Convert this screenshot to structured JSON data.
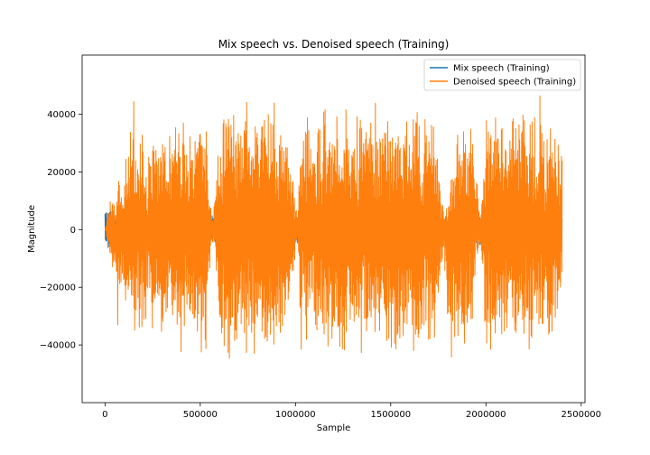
{
  "chart_data": {
    "type": "line",
    "title": "Mix speech vs. Denoised speech (Training)",
    "xlabel": "Sample",
    "ylabel": "Magnitude",
    "xlim": [
      -120000,
      2520000
    ],
    "ylim": [
      -60000,
      60500
    ],
    "xticks": [
      0,
      500000,
      1000000,
      1500000,
      2000000,
      2500000
    ],
    "xtick_labels": [
      "0",
      "500000",
      "1000000",
      "1500000",
      "2000000",
      "2500000"
    ],
    "yticks": [
      -40000,
      -20000,
      0,
      20000,
      40000
    ],
    "ytick_labels": [
      "−40000",
      "−20000",
      "0",
      "20000",
      "40000"
    ],
    "grid": false,
    "legend_position": "top-right",
    "series": [
      {
        "name": "Mix speech (Training)",
        "color": "#1f77b4",
        "envelope": {
          "x": [
            0,
            30000,
            60000,
            100000,
            150000,
            200000,
            250000,
            300000,
            400000,
            480000,
            520000,
            560000,
            600000,
            700000,
            800000,
            900000,
            1000000,
            1020000,
            1100000,
            1200000,
            1300000,
            1400000,
            1500000,
            1600000,
            1700000,
            1750000,
            1800000,
            1900000,
            1950000,
            2000000,
            2100000,
            2200000,
            2300000,
            2350000,
            2400000
          ],
          "y": [
            6500,
            7000,
            6000,
            8000,
            7500,
            6000,
            5500,
            5000,
            4500,
            3000,
            4000,
            5000,
            5000,
            4500,
            5000,
            4500,
            3500,
            6000,
            5000,
            4500,
            5000,
            4000,
            4500,
            5000,
            4500,
            3500,
            5000,
            4000,
            6000,
            5500,
            5000,
            4500,
            3500,
            5000,
            4500
          ]
        }
      },
      {
        "name": "Denoised speech (Training)",
        "color": "#ff7f0e",
        "envelope": {
          "x": [
            0,
            20000,
            40000,
            55000,
            70000,
            85000,
            100000,
            120000,
            150000,
            170000,
            200000,
            220000,
            250000,
            280000,
            300000,
            330000,
            360000,
            400000,
            430000,
            460000,
            500000,
            530000,
            545000,
            560000,
            580000,
            600000,
            650000,
            700000,
            750000,
            800000,
            850000,
            900000,
            940000,
            970000,
            1000000,
            1010000,
            1030000,
            1060000,
            1100000,
            1150000,
            1200000,
            1250000,
            1300000,
            1350000,
            1400000,
            1450000,
            1500000,
            1550000,
            1600000,
            1650000,
            1700000,
            1740000,
            1760000,
            1780000,
            1800000,
            1850000,
            1900000,
            1930000,
            1950000,
            1970000,
            2000000,
            2050000,
            2100000,
            2150000,
            2200000,
            2250000,
            2290000,
            2310000,
            2330000,
            2360000,
            2400000
          ],
          "pos": [
            0,
            10000,
            17000,
            9000,
            30000,
            11000,
            26000,
            28000,
            54000,
            33000,
            42000,
            21000,
            46000,
            34000,
            41000,
            30000,
            46000,
            44000,
            39000,
            41000,
            47000,
            46000,
            20000,
            3000,
            12000,
            40000,
            46000,
            44000,
            46000,
            44000,
            46000,
            48000,
            40000,
            30000,
            12000,
            3000,
            41000,
            42000,
            38000,
            45000,
            40000,
            47000,
            44000,
            46000,
            48000,
            40000,
            52000,
            42000,
            42000,
            46000,
            44000,
            40000,
            20000,
            9000,
            12000,
            40000,
            45000,
            38000,
            20000,
            6000,
            40000,
            44000,
            38000,
            42000,
            45000,
            40000,
            52000,
            30000,
            44000,
            40000,
            30000
          ],
          "neg": [
            0,
            -9000,
            -24000,
            -10000,
            -42000,
            -18000,
            -35000,
            -40000,
            -54000,
            -38000,
            -50000,
            -25000,
            -46000,
            -36000,
            -43000,
            -32000,
            -47000,
            -46000,
            -42000,
            -44000,
            -46000,
            -48000,
            -20000,
            -3000,
            -12000,
            -40000,
            -48000,
            -46000,
            -48000,
            -44000,
            -48000,
            -46000,
            -42000,
            -30000,
            -12000,
            -3000,
            -45000,
            -44000,
            -40000,
            -46000,
            -42000,
            -46000,
            -44000,
            -47000,
            -46000,
            -42000,
            -50000,
            -44000,
            -44000,
            -45000,
            -46000,
            -40000,
            -20000,
            -9000,
            -54000,
            -42000,
            -50000,
            -38000,
            -20000,
            -6000,
            -42000,
            -48000,
            -40000,
            -44000,
            -46000,
            -42000,
            -50000,
            -30000,
            -44000,
            -40000,
            -22000
          ]
        }
      }
    ]
  }
}
